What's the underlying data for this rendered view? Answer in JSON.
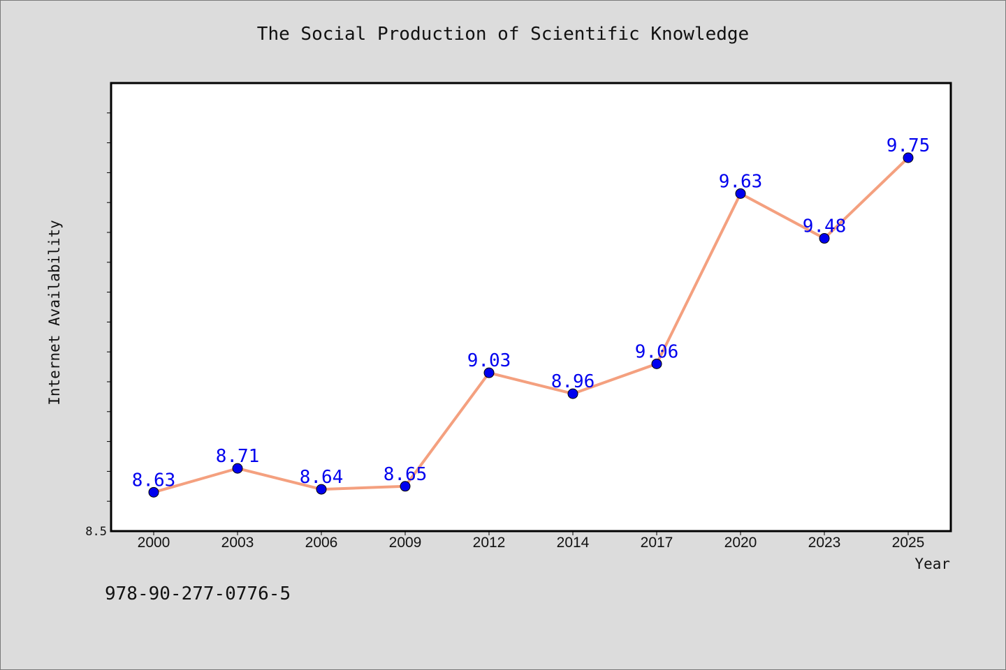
{
  "chart_data": {
    "type": "line",
    "title": "The Social Production of Scientific Knowledge",
    "xlabel": "Year",
    "ylabel": "Internet Availability",
    "categories": [
      "2000",
      "2003",
      "2006",
      "2009",
      "2012",
      "2014",
      "2017",
      "2020",
      "2023",
      "2025"
    ],
    "series": [
      {
        "values": [
          8.63,
          8.71,
          8.64,
          8.65,
          9.03,
          8.96,
          9.06,
          9.63,
          9.48,
          9.75
        ],
        "labels": [
          "8.63",
          "8.71",
          "8.64",
          "8.65",
          "9.03",
          "8.96",
          "9.06",
          "9.63",
          "9.48",
          "9.75"
        ]
      }
    ],
    "ylim": [
      8.5,
      10.0
    ],
    "y_tick_labels": [
      "8.5"
    ],
    "grid": false,
    "line_color": "#f4a07f",
    "marker_color": "#0000ee",
    "label_color": "#0000ee"
  },
  "footer": {
    "isbn": "978-90-277-0776-5"
  }
}
